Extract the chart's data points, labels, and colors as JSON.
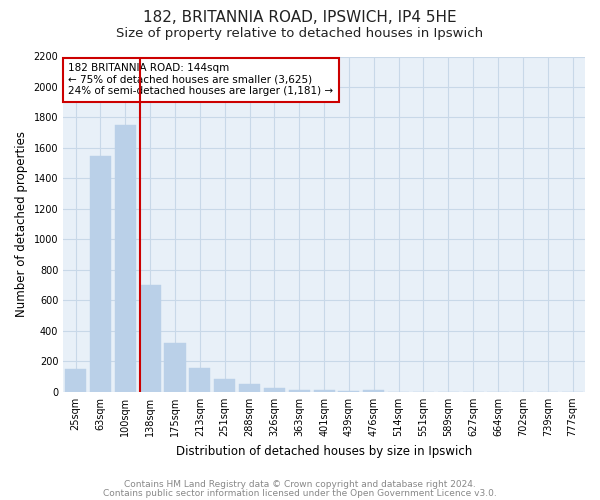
{
  "title": "182, BRITANNIA ROAD, IPSWICH, IP4 5HE",
  "subtitle": "Size of property relative to detached houses in Ipswich",
  "xlabel": "Distribution of detached houses by size in Ipswich",
  "ylabel": "Number of detached properties",
  "footnote1": "Contains HM Land Registry data © Crown copyright and database right 2024.",
  "footnote2": "Contains public sector information licensed under the Open Government Licence v3.0.",
  "categories": [
    "25sqm",
    "63sqm",
    "100sqm",
    "138sqm",
    "175sqm",
    "213sqm",
    "251sqm",
    "288sqm",
    "326sqm",
    "363sqm",
    "401sqm",
    "439sqm",
    "476sqm",
    "514sqm",
    "551sqm",
    "589sqm",
    "627sqm",
    "664sqm",
    "702sqm",
    "739sqm",
    "777sqm"
  ],
  "values": [
    150,
    1550,
    1750,
    700,
    320,
    155,
    85,
    50,
    25,
    15,
    10,
    8,
    15,
    2,
    1,
    1,
    1,
    0,
    0,
    0,
    0
  ],
  "bar_color": "#bad0e8",
  "bar_edge_color": "#bad0e8",
  "grid_color": "#c8d8e8",
  "background_color": "#e8f0f8",
  "red_line_index": 3,
  "red_line_color": "#cc0000",
  "annotation_text": "182 BRITANNIA ROAD: 144sqm\n← 75% of detached houses are smaller (3,625)\n24% of semi-detached houses are larger (1,181) →",
  "annotation_box_color": "#cc0000",
  "ylim": [
    0,
    2200
  ],
  "yticks": [
    0,
    200,
    400,
    600,
    800,
    1000,
    1200,
    1400,
    1600,
    1800,
    2000,
    2200
  ],
  "title_fontsize": 11,
  "subtitle_fontsize": 9.5,
  "axis_label_fontsize": 8.5,
  "tick_fontsize": 7,
  "footnote_fontsize": 6.5,
  "annotation_fontsize": 7.5
}
